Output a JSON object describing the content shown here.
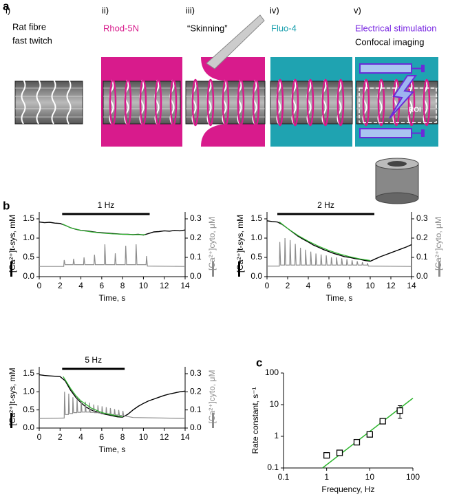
{
  "panel_a": {
    "label": "a",
    "steps": [
      {
        "numeral": "i)",
        "lines": [
          "Rat fibre",
          "fast twitch"
        ]
      },
      {
        "numeral": "ii)",
        "lines": [
          "Rhod-5N"
        ]
      },
      {
        "numeral": "iii)",
        "lines": [
          "“Skinning”"
        ]
      },
      {
        "numeral": "iv)",
        "lines": [
          "Fluo-4"
        ]
      },
      {
        "numeral": "v)",
        "lines": [
          "Electrical stimulation",
          "Confocal imaging"
        ]
      }
    ],
    "roi": "ROI"
  },
  "panel_labels": [
    "b",
    "c"
  ],
  "chart_data": [
    {
      "type": "line",
      "annotation": "1 Hz",
      "stimulus_x": [
        2.2,
        10.6
      ],
      "xlabel": "Time, s",
      "ylabel": "[Ca²⁺]t-sys, mM",
      "y2label": "[Ca²⁺]cyto, μM",
      "xlim": [
        0,
        14
      ],
      "xticks": [
        0,
        2,
        4,
        6,
        8,
        10,
        12,
        14
      ],
      "ylim": [
        0,
        1.5
      ],
      "yticks": [
        {
          "value": 0,
          "label": "0.0"
        },
        0.5,
        {
          "value": 1,
          "label": "1.0"
        },
        1.5
      ],
      "y2lim": [
        0,
        0.3
      ],
      "y2ticks": [
        {
          "value": 0,
          "label": "0.0"
        },
        0.1,
        0.2,
        0.3
      ],
      "series": [
        {
          "color": "#000000",
          "x": [
            0,
            0.5,
            1,
            1.5,
            2,
            2.5,
            3,
            3.5,
            4,
            4.5,
            5,
            5.5,
            6,
            6.5,
            7,
            7.5,
            8,
            8.5,
            9,
            9.5,
            10,
            10.5,
            11,
            11.5,
            12,
            12.5,
            13,
            13.5,
            14
          ],
          "values": [
            1.42,
            1.4,
            1.41,
            1.39,
            1.38,
            1.33,
            1.27,
            1.23,
            1.2,
            1.19,
            1.17,
            1.15,
            1.14,
            1.13,
            1.12,
            1.11,
            1.1,
            1.1,
            1.09,
            1.1,
            1.08,
            1.12,
            1.16,
            1.17,
            1.19,
            1.18,
            1.2,
            1.19,
            1.21
          ]
        },
        {
          "color": "#8c8c8c",
          "axis": "y2",
          "x": [
            0,
            2.35,
            2.4,
            2.48,
            3.25,
            3.3,
            3.38,
            4.25,
            4.3,
            4.38,
            5.25,
            5.3,
            5.38,
            6.25,
            6.3,
            6.38,
            7.25,
            7.3,
            7.38,
            8.25,
            8.3,
            8.38,
            9.25,
            9.3,
            9.38,
            10.25,
            10.3,
            10.38,
            14
          ],
          "values": [
            0.053,
            0.053,
            0.086,
            0.062,
            0.062,
            0.093,
            0.062,
            0.062,
            0.1,
            0.062,
            0.062,
            0.114,
            0.062,
            0.062,
            0.168,
            0.062,
            0.062,
            0.121,
            0.062,
            0.062,
            0.16,
            0.062,
            0.062,
            0.168,
            0.062,
            0.062,
            0.107,
            0.055,
            0.053
          ]
        },
        {
          "color": "#2db52d",
          "x": [
            2.2,
            3,
            4,
            5,
            6,
            7,
            8,
            9,
            10.2
          ],
          "values": [
            1.37,
            1.27,
            1.2,
            1.16,
            1.13,
            1.11,
            1.1,
            1.09,
            1.09
          ]
        }
      ]
    },
    {
      "type": "line",
      "annotation": "2 Hz",
      "stimulus_x": [
        1,
        10.4
      ],
      "xlabel": "Time, s",
      "ylabel": "[Ca²⁺]t-sys, mM",
      "y2label": "[Ca²⁺]cyto, μM",
      "xlim": [
        0,
        14
      ],
      "xticks": [
        0,
        2,
        4,
        6,
        8,
        10,
        12,
        14
      ],
      "ylim": [
        0,
        1.5
      ],
      "yticks": [
        {
          "value": 0,
          "label": "0.0"
        },
        0.5,
        {
          "value": 1,
          "label": "1.0"
        },
        1.5
      ],
      "y2lim": [
        0,
        0.3
      ],
      "y2ticks": [
        {
          "value": 0,
          "label": "0.0"
        },
        0.1,
        0.2,
        0.3
      ],
      "series": [
        {
          "color": "#000000",
          "x": [
            0,
            0.5,
            1,
            1.5,
            2,
            2.5,
            3,
            3.5,
            4,
            4.5,
            5,
            5.5,
            6,
            6.5,
            7,
            7.5,
            8,
            8.5,
            9,
            9.5,
            10,
            10.5,
            11,
            11.5,
            12,
            12.5,
            13,
            13.5,
            14
          ],
          "values": [
            1.45,
            1.43,
            1.42,
            1.35,
            1.25,
            1.15,
            1.05,
            0.97,
            0.9,
            0.82,
            0.76,
            0.7,
            0.65,
            0.6,
            0.56,
            0.52,
            0.5,
            0.47,
            0.45,
            0.42,
            0.4,
            0.46,
            0.52,
            0.57,
            0.62,
            0.67,
            0.72,
            0.77,
            0.83
          ]
        },
        {
          "color": "#8c8c8c",
          "axis": "y2",
          "x": [
            0,
            1.2,
            1.24,
            1.32,
            1.7,
            1.74,
            1.82,
            2.2,
            2.24,
            2.32,
            2.7,
            2.74,
            2.82,
            3.2,
            3.24,
            3.32,
            3.7,
            3.74,
            3.82,
            4.2,
            4.24,
            4.32,
            4.7,
            4.74,
            4.82,
            5.2,
            5.24,
            5.32,
            5.7,
            5.74,
            5.82,
            6.2,
            6.24,
            6.32,
            6.7,
            6.74,
            6.82,
            7.2,
            7.24,
            7.32,
            7.7,
            7.74,
            7.82,
            8.2,
            8.24,
            8.32,
            8.7,
            8.74,
            8.82,
            9.2,
            9.24,
            9.32,
            9.7,
            9.74,
            9.82,
            14
          ],
          "values": [
            0.055,
            0.055,
            0.18,
            0.06,
            0.06,
            0.2,
            0.06,
            0.06,
            0.19,
            0.06,
            0.06,
            0.17,
            0.06,
            0.06,
            0.15,
            0.06,
            0.06,
            0.14,
            0.06,
            0.06,
            0.13,
            0.06,
            0.06,
            0.12,
            0.06,
            0.06,
            0.115,
            0.06,
            0.06,
            0.11,
            0.06,
            0.06,
            0.1,
            0.06,
            0.06,
            0.1,
            0.06,
            0.06,
            0.095,
            0.06,
            0.06,
            0.09,
            0.06,
            0.06,
            0.085,
            0.06,
            0.06,
            0.08,
            0.06,
            0.06,
            0.075,
            0.06,
            0.06,
            0.07,
            0.055,
            0.053
          ]
        },
        {
          "color": "#2db52d",
          "x": [
            1.2,
            2,
            3,
            4,
            5,
            6,
            7,
            8,
            9,
            10
          ],
          "values": [
            1.42,
            1.25,
            1.07,
            0.92,
            0.79,
            0.68,
            0.59,
            0.52,
            0.46,
            0.42
          ]
        }
      ]
    },
    {
      "type": "line",
      "annotation": "5 Hz",
      "stimulus_x": [
        2.2,
        8.2
      ],
      "xlabel": "Time, s",
      "ylabel": "[Ca²⁺]t-sys, mM",
      "y2label": "[Ca²⁺]cyto, μM",
      "xlim": [
        0,
        14
      ],
      "xticks": [
        0,
        2,
        4,
        6,
        8,
        10,
        12,
        14
      ],
      "ylim": [
        0,
        1.5
      ],
      "yticks": [
        {
          "value": 0,
          "label": "0.0"
        },
        0.5,
        {
          "value": 1,
          "label": "1.0"
        },
        1.5
      ],
      "y2lim": [
        0,
        0.3
      ],
      "y2ticks": [
        {
          "value": 0,
          "label": "0.0"
        },
        0.1,
        0.2,
        0.3
      ],
      "series": [
        {
          "color": "#000000",
          "x": [
            0,
            0.5,
            1,
            1.5,
            2,
            2.5,
            3,
            3.5,
            4,
            4.5,
            5,
            5.5,
            6,
            6.5,
            7,
            7.5,
            8,
            8.5,
            9,
            9.5,
            10,
            10.5,
            11,
            11.5,
            12,
            12.5,
            13,
            13.5,
            14
          ],
          "values": [
            1.47,
            1.45,
            1.44,
            1.43,
            1.42,
            1.3,
            1.05,
            0.85,
            0.7,
            0.58,
            0.5,
            0.45,
            0.4,
            0.37,
            0.34,
            0.31,
            0.3,
            0.38,
            0.5,
            0.6,
            0.68,
            0.75,
            0.8,
            0.85,
            0.9,
            0.94,
            0.97,
            1.0,
            1.02
          ]
        },
        {
          "color": "#8c8c8c",
          "axis": "y2",
          "x": [
            0,
            2.35,
            2.4,
            2.43,
            2.5,
            2.8,
            2.83,
            2.9,
            3.2,
            3.23,
            3.3,
            3.6,
            3.63,
            3.7,
            4,
            4.03,
            4.1,
            4.4,
            4.43,
            4.5,
            4.8,
            4.83,
            4.9,
            5.2,
            5.23,
            5.3,
            5.6,
            5.63,
            5.7,
            6,
            6.03,
            6.1,
            6.4,
            6.43,
            6.5,
            6.8,
            6.83,
            6.9,
            7.2,
            7.23,
            7.3,
            7.6,
            7.63,
            7.7,
            8,
            8.03,
            8.1,
            9,
            14
          ],
          "values": [
            0.053,
            0.055,
            0.055,
            0.2,
            0.075,
            0.075,
            0.19,
            0.08,
            0.08,
            0.17,
            0.085,
            0.085,
            0.16,
            0.087,
            0.087,
            0.15,
            0.088,
            0.088,
            0.145,
            0.088,
            0.088,
            0.14,
            0.087,
            0.087,
            0.13,
            0.085,
            0.085,
            0.125,
            0.083,
            0.083,
            0.12,
            0.08,
            0.08,
            0.115,
            0.078,
            0.078,
            0.11,
            0.075,
            0.075,
            0.105,
            0.072,
            0.072,
            0.1,
            0.07,
            0.07,
            0.095,
            0.068,
            0.058,
            0.053
          ]
        },
        {
          "color": "#2db52d",
          "x": [
            2.3,
            3,
            3.5,
            4,
            5,
            6,
            7,
            8
          ],
          "values": [
            1.42,
            1.1,
            0.9,
            0.75,
            0.55,
            0.43,
            0.36,
            0.31
          ]
        }
      ]
    },
    {
      "type": "scatter",
      "xlabel": "Frequency, Hz",
      "ylabel": "Rate constant, s⁻¹",
      "log_x": true,
      "log_y": true,
      "xlim": [
        0.1,
        100
      ],
      "xticks": [
        0.1,
        1,
        10,
        100
      ],
      "ylim": [
        0.1,
        100
      ],
      "yticks": [
        0.1,
        1,
        10,
        100
      ],
      "x": [
        1,
        2,
        5,
        10,
        20,
        50
      ],
      "values": [
        0.25,
        0.3,
        0.65,
        1.15,
        3,
        6.5
      ],
      "errors": [
        0.02,
        0.05,
        0.05,
        0.15,
        0.2,
        2.8
      ],
      "color": "#000000",
      "fit": {
        "color": "#2db52d",
        "x": [
          0.8,
          100
        ],
        "values": [
          0.1,
          16
        ]
      }
    }
  ]
}
